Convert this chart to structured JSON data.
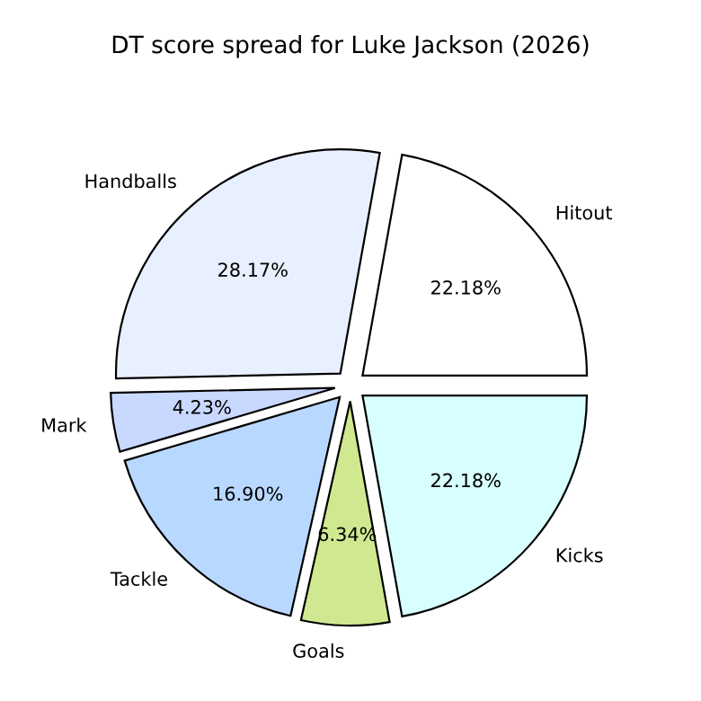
{
  "chart_data": {
    "type": "pie",
    "title": "DT score spread for Luke Jackson (2026)",
    "categories": [
      "Hitout",
      "Handballs",
      "Mark",
      "Tackle",
      "Goals",
      "Kicks"
    ],
    "values": [
      22.18,
      28.17,
      4.23,
      16.9,
      6.34,
      22.18
    ],
    "value_labels": [
      "22.18%",
      "28.17%",
      "4.23%",
      "16.90%",
      "6.34%",
      "22.18%"
    ],
    "colors": [
      "#ffffff",
      "#e8f0ff",
      "#c8d8ff",
      "#b8d8ff",
      "#d0e890",
      "#d8ffff"
    ]
  }
}
